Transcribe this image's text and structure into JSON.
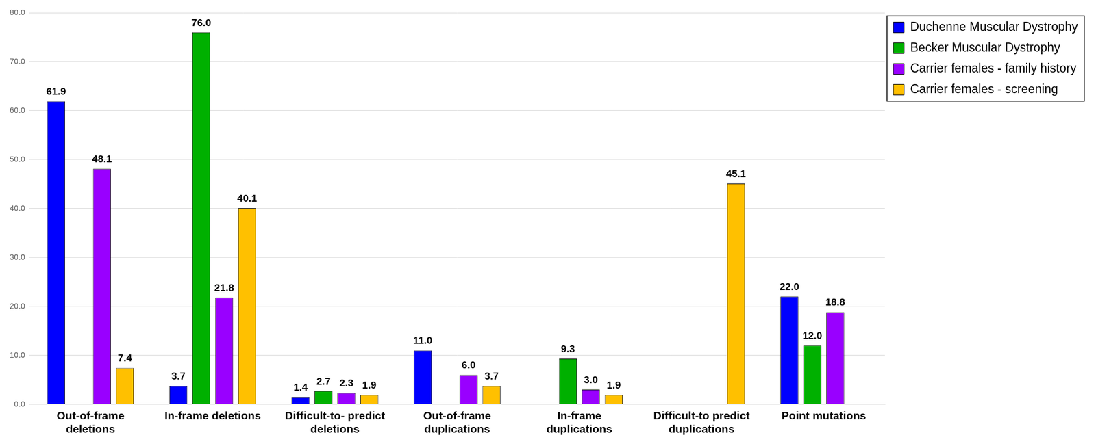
{
  "chart_data": {
    "type": "bar",
    "categories": [
      [
        "Out-of-frame",
        "deletions"
      ],
      [
        "In-frame deletions"
      ],
      [
        "Difficult-to- predict",
        "deletions"
      ],
      [
        "Out-of-frame",
        "duplications"
      ],
      [
        "In-frame",
        "duplications"
      ],
      [
        "Difficult-to predict",
        "duplications"
      ],
      [
        "Point mutations"
      ]
    ],
    "series": [
      {
        "name": "Duchenne Muscular Dystrophy",
        "color": "#0000ff",
        "values": [
          61.9,
          3.7,
          1.4,
          11.0,
          0,
          0,
          22.0
        ],
        "value_labels": [
          "61.9",
          "3.7",
          "1.4",
          "11.0",
          null,
          null,
          "22.0"
        ]
      },
      {
        "name": "Becker Muscular Dystrophy",
        "color": "#00b000",
        "values": [
          0,
          76.0,
          2.7,
          0,
          9.3,
          0,
          12.0
        ],
        "value_labels": [
          null,
          "76.0",
          "2.7",
          null,
          "9.3",
          null,
          "12.0"
        ]
      },
      {
        "name": "Carrier females - family history",
        "color": "#9900ff",
        "values": [
          48.1,
          21.8,
          2.3,
          6.0,
          3.0,
          0,
          18.8
        ],
        "value_labels": [
          "48.1",
          "21.8",
          "2.3",
          "6.0",
          "3.0",
          null,
          "18.8"
        ]
      },
      {
        "name": "Carrier females - screening",
        "color": "#ffc000",
        "values": [
          7.4,
          40.1,
          1.9,
          3.7,
          1.9,
          45.1,
          0
        ],
        "value_labels": [
          "7.4",
          "40.1",
          "1.9",
          "3.7",
          "1.9",
          "45.1",
          null
        ]
      }
    ],
    "ylim": [
      0,
      80
    ],
    "yticks": [
      {
        "value": 0,
        "label": "0.0"
      },
      {
        "value": 10,
        "label": "10.0"
      },
      {
        "value": 20,
        "label": "20.0"
      },
      {
        "value": 30,
        "label": "30.0"
      },
      {
        "value": 40,
        "label": "40.0"
      },
      {
        "value": 50,
        "label": "50.0"
      },
      {
        "value": 60,
        "label": "60.0"
      },
      {
        "value": 70,
        "label": "70.0"
      },
      {
        "value": 80,
        "label": "80.0"
      }
    ],
    "grid": true,
    "legend": "right",
    "data_labels": true
  }
}
